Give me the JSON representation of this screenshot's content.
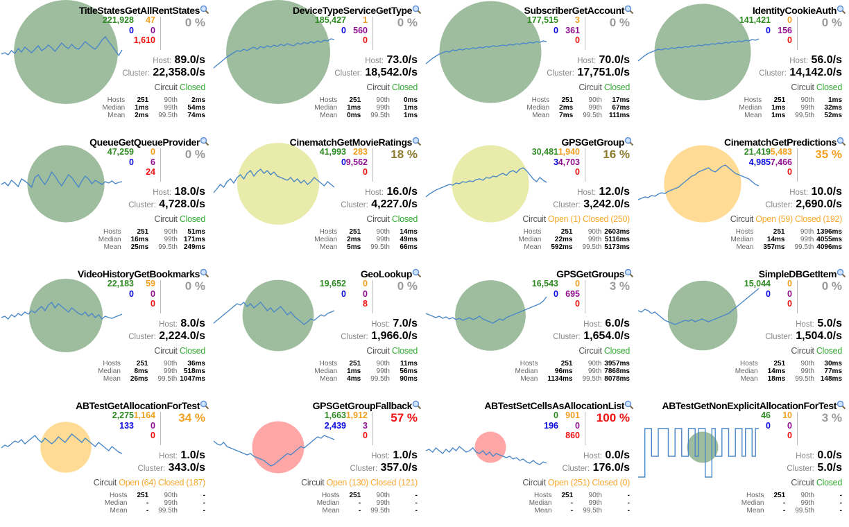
{
  "colors": {
    "ok_circle": "#7ea57e",
    "warn_circle": "#e1e48f",
    "amber_circle": "#ffcf72",
    "bad_circle": "#ff8888",
    "spark_line": "#4a87c7"
  },
  "labels": {
    "host": "Host:",
    "cluster": "Cluster:",
    "circuit": "Circuit"
  },
  "cards": [
    {
      "title": "TitleStatesGetAllRentStates",
      "success": "221,928",
      "short": "0",
      "timeout": "47",
      "rejected": "0",
      "failure": "1,610",
      "pct": "0 %",
      "pct_color": "#9a9a9a",
      "host_rate": "89.0/s",
      "cluster_rate": "22,358.0/s",
      "circuit_parts": [
        {
          "text": "Closed",
          "color": "#33aa33"
        }
      ],
      "circle": {
        "size": 1.0,
        "color": "#7ea57e"
      },
      "series": [
        50,
        52,
        49,
        55,
        51,
        58,
        53,
        60,
        56,
        52,
        57,
        62,
        55,
        58,
        63,
        59,
        54,
        60,
        66,
        61,
        58,
        64,
        59,
        57,
        62,
        68,
        64,
        60,
        57,
        63,
        70,
        75,
        68,
        62,
        55,
        48,
        56
      ],
      "stats": {
        "hosts": "251",
        "median": "1ms",
        "mean": "2ms",
        "p90": "2ms",
        "p99": "54ms",
        "p995": "74ms"
      }
    },
    {
      "title": "DeviceTypeServiceGetType",
      "success": "185,427",
      "short": "0",
      "timeout": "1",
      "rejected": "560",
      "failure": "0",
      "pct": "0 %",
      "pct_color": "#9a9a9a",
      "host_rate": "73.0/s",
      "cluster_rate": "18,542.0/s",
      "circuit_parts": [
        {
          "text": "Closed",
          "color": "#33aa33"
        }
      ],
      "circle": {
        "size": 1.0,
        "color": "#7ea57e"
      },
      "series": [
        30,
        34,
        38,
        42,
        46,
        49,
        52,
        55,
        54,
        57,
        55,
        58,
        60,
        57,
        61,
        59,
        62,
        60,
        63,
        61,
        64,
        62,
        65,
        63,
        62,
        66,
        64,
        67,
        65,
        68,
        66,
        69,
        67,
        70,
        69,
        72,
        71
      ],
      "stats": {
        "hosts": "251",
        "median": "1ms",
        "mean": "0ms",
        "p90": "0ms",
        "p99": "1ms",
        "p995": "1ms"
      }
    },
    {
      "title": "SubscriberGetAccount",
      "success": "177,515",
      "short": "0",
      "timeout": "3",
      "rejected": "361",
      "failure": "0",
      "pct": "0 %",
      "pct_color": "#9a9a9a",
      "host_rate": "70.0/s",
      "cluster_rate": "17,751.0/s",
      "circuit_parts": [
        {
          "text": "Closed",
          "color": "#33aa33"
        }
      ],
      "circle": {
        "size": 0.96,
        "color": "#7ea57e"
      },
      "series": [
        36,
        40,
        44,
        47,
        50,
        52,
        54,
        53,
        56,
        55,
        57,
        56,
        58,
        57,
        59,
        58,
        60,
        59,
        61,
        60,
        62,
        61,
        62,
        63,
        62,
        64,
        63,
        65,
        64,
        66,
        65,
        67,
        66,
        68,
        67,
        69,
        68
      ],
      "stats": {
        "hosts": "251",
        "median": "2ms",
        "mean": "7ms",
        "p90": "17ms",
        "p99": "67ms",
        "p995": "111ms"
      }
    },
    {
      "title": "IdentityCookieAuth",
      "success": "141,421",
      "short": "0",
      "timeout": "0",
      "rejected": "156",
      "failure": "0",
      "pct": "0 %",
      "pct_color": "#9a9a9a",
      "host_rate": "56.0/s",
      "cluster_rate": "14,142.0/s",
      "circuit_parts": [
        {
          "text": "Closed",
          "color": "#33aa33"
        }
      ],
      "circle": {
        "size": 0.86,
        "color": "#7ea57e"
      },
      "series": [
        40,
        44,
        48,
        51,
        53,
        55,
        57,
        56,
        58,
        57,
        59,
        58,
        60,
        59,
        61,
        60,
        62,
        61,
        63,
        62,
        64,
        63,
        65,
        64,
        66,
        65,
        67,
        66,
        68,
        67,
        69,
        68,
        70,
        69,
        71,
        70,
        72
      ],
      "stats": {
        "hosts": "251",
        "median": "1ms",
        "mean": "1ms",
        "p90": "1ms",
        "p99": "32ms",
        "p995": "52ms"
      }
    },
    {
      "title": "QueueGetQueueProvider",
      "success": "47,259",
      "short": "0",
      "timeout": "0",
      "rejected": "6",
      "failure": "24",
      "pct": "0 %",
      "pct_color": "#9a9a9a",
      "host_rate": "18.0/s",
      "cluster_rate": "4,728.0/s",
      "circuit_parts": [
        {
          "text": "Closed",
          "color": "#33aa33"
        }
      ],
      "circle": {
        "size": 0.55,
        "color": "#7ea57e"
      },
      "series": [
        52,
        55,
        50,
        58,
        54,
        49,
        60,
        57,
        53,
        48,
        62,
        66,
        58,
        52,
        60,
        70,
        64,
        56,
        50,
        58,
        66,
        62,
        55,
        48,
        57,
        64,
        60,
        53,
        58,
        55,
        52,
        56,
        54,
        57,
        53,
        55,
        56
      ],
      "stats": {
        "hosts": "251",
        "median": "16ms",
        "mean": "25ms",
        "p90": "51ms",
        "p99": "171ms",
        "p995": "249ms"
      }
    },
    {
      "title": "CinematchGetMovieRatings",
      "success": "41,993",
      "short": "0",
      "timeout": "283",
      "rejected": "9,562",
      "failure": "0",
      "pct": "18 %",
      "pct_color": "#8c7a2e",
      "host_rate": "16.0/s",
      "cluster_rate": "4,227.0/s",
      "circuit_parts": [
        {
          "text": "Closed",
          "color": "#33aa33"
        }
      ],
      "circle": {
        "size": 0.62,
        "color": "#e1e48f"
      },
      "series": [
        40,
        46,
        52,
        48,
        56,
        60,
        54,
        62,
        66,
        60,
        68,
        72,
        64,
        70,
        74,
        68,
        72,
        66,
        70,
        64,
        62,
        60,
        58,
        62,
        56,
        60,
        54,
        58,
        52,
        56,
        62,
        58,
        54,
        50,
        56,
        52,
        48
      ],
      "stats": {
        "hosts": "251",
        "median": "2ms",
        "mean": "5ms",
        "p90": "14ms",
        "p99": "49ms",
        "p995": "66ms"
      }
    },
    {
      "title": "GPSGetGroup",
      "success": "30,481",
      "short": "3",
      "timeout": "1,940",
      "rejected": "4,703",
      "failure": "0",
      "pct": "16 %",
      "pct_color": "#8c7a2e",
      "host_rate": "12.0/s",
      "cluster_rate": "3,242.0/s",
      "circuit_parts": [
        {
          "text": "Open (1)",
          "color": "#f7a830"
        },
        {
          "text": "Closed (250)",
          "color": "#f7a830"
        }
      ],
      "circle": {
        "size": 0.55,
        "color": "#e1e48f"
      },
      "series": [
        34,
        38,
        41,
        44,
        46,
        48,
        50,
        52,
        51,
        54,
        53,
        56,
        55,
        57,
        56,
        59,
        60,
        58,
        62,
        61,
        64,
        63,
        66,
        68,
        65,
        70,
        72,
        69,
        74,
        76,
        72,
        66,
        60,
        56,
        62,
        58,
        55
      ],
      "stats": {
        "hosts": "251",
        "median": "22ms",
        "mean": "592ms",
        "p90": "2603ms",
        "p99": "5116ms",
        "p995": "5173ms"
      }
    },
    {
      "title": "CinematchGetPredictions",
      "success": "21,419",
      "short": "4,985",
      "timeout": "5,483",
      "rejected": "7,466",
      "failure": "0",
      "pct": "35 %",
      "pct_color": "#f0a020",
      "host_rate": "10.0/s",
      "cluster_rate": "2,690.0/s",
      "circuit_parts": [
        {
          "text": "Open (59)",
          "color": "#f7a830"
        },
        {
          "text": "Closed (192)",
          "color": "#f7a830"
        }
      ],
      "circle": {
        "size": 0.55,
        "color": "#ffcf72"
      },
      "series": [
        30,
        32,
        34,
        33,
        36,
        35,
        38,
        40,
        39,
        42,
        44,
        46,
        48,
        52,
        56,
        60,
        64,
        66,
        70,
        72,
        74,
        76,
        72,
        70,
        74,
        78,
        80,
        76,
        72,
        68,
        66,
        64,
        62,
        60,
        56,
        52,
        50
      ],
      "stats": {
        "hosts": "251",
        "median": "14ms",
        "mean": "357ms",
        "p90": "1396ms",
        "p99": "4055ms",
        "p995": "4096ms"
      }
    },
    {
      "title": "VideoHistoryGetBookmarks",
      "success": "22,183",
      "short": "0",
      "timeout": "59",
      "rejected": "0",
      "failure": "0",
      "pct": "0 %",
      "pct_color": "#9a9a9a",
      "host_rate": "8.0/s",
      "cluster_rate": "2,224.0/s",
      "circuit_parts": [
        {
          "text": "Closed",
          "color": "#33aa33"
        }
      ],
      "circle": {
        "size": 0.5,
        "color": "#7ea57e"
      },
      "series": [
        50,
        52,
        48,
        54,
        51,
        56,
        53,
        58,
        55,
        60,
        57,
        62,
        66,
        60,
        68,
        72,
        64,
        70,
        66,
        62,
        58,
        64,
        60,
        56,
        54,
        58,
        52,
        56,
        50,
        54,
        48,
        52,
        50,
        49,
        51,
        53,
        55
      ],
      "stats": {
        "hosts": "251",
        "median": "8ms",
        "mean": "26ms",
        "p90": "36ms",
        "p99": "518ms",
        "p995": "1047ms"
      }
    },
    {
      "title": "GeoLookup",
      "success": "19,652",
      "short": "0",
      "timeout": "0",
      "rejected": "0",
      "failure": "8",
      "pct": "0 %",
      "pct_color": "#9a9a9a",
      "host_rate": "7.0/s",
      "cluster_rate": "1,966.0/s",
      "circuit_parts": [
        {
          "text": "Closed",
          "color": "#33aa33"
        }
      ],
      "circle": {
        "size": 0.47,
        "color": "#7ea57e"
      },
      "series": [
        42,
        46,
        50,
        54,
        58,
        62,
        66,
        70,
        68,
        72,
        66,
        70,
        64,
        68,
        72,
        66,
        60,
        64,
        58,
        62,
        66,
        60,
        54,
        58,
        52,
        48,
        44,
        40,
        44,
        48,
        46,
        50,
        54,
        52,
        56,
        58,
        60
      ],
      "stats": {
        "hosts": "251",
        "median": "1ms",
        "mean": "4ms",
        "p90": "11ms",
        "p99": "56ms",
        "p995": "90ms"
      }
    },
    {
      "title": "GPSGetGroups",
      "success": "16,543",
      "short": "0",
      "timeout": "0",
      "rejected": "695",
      "failure": "0",
      "pct": "3 %",
      "pct_color": "#9a9a9a",
      "host_rate": "6.0/s",
      "cluster_rate": "1,654.0/s",
      "circuit_parts": [
        {
          "text": "Closed",
          "color": "#33aa33"
        }
      ],
      "circle": {
        "size": 0.46,
        "color": "#7ea57e"
      },
      "series": [
        56,
        54,
        52,
        50,
        52,
        49,
        51,
        48,
        50,
        47,
        49,
        46,
        48,
        50,
        47,
        49,
        52,
        48,
        46,
        44,
        42,
        45,
        48,
        46,
        50,
        52,
        54,
        56,
        58,
        60,
        62,
        64,
        66,
        68,
        70,
        74,
        80
      ],
      "stats": {
        "hosts": "251",
        "median": "96ms",
        "mean": "1134ms",
        "p90": "3957ms",
        "p99": "7868ms",
        "p995": "8078ms"
      }
    },
    {
      "title": "SimpleDBGetItem",
      "success": "15,044",
      "short": "0",
      "timeout": "0",
      "rejected": "0",
      "failure": "0",
      "pct": "0 %",
      "pct_color": "#9a9a9a",
      "host_rate": "5.0/s",
      "cluster_rate": "1,504.0/s",
      "circuit_parts": [
        {
          "text": "Closed",
          "color": "#33aa33"
        }
      ],
      "circle": {
        "size": 0.45,
        "color": "#7ea57e"
      },
      "series": [
        60,
        58,
        62,
        60,
        56,
        58,
        54,
        50,
        46,
        44,
        42,
        40,
        42,
        44,
        46,
        45,
        47,
        44,
        46,
        48,
        46,
        44,
        46,
        48,
        50,
        52,
        54,
        56,
        60,
        64,
        68,
        72,
        76,
        80,
        84,
        88,
        92
      ],
      "stats": {
        "hosts": "251",
        "median": "14ms",
        "mean": "18ms",
        "p90": "30ms",
        "p99": "77ms",
        "p995": "148ms"
      }
    },
    {
      "title": "ABTestGetAllocationForTest",
      "success": "2,275",
      "short": "133",
      "timeout": "1,164",
      "rejected": "0",
      "failure": "0",
      "pct": "34 %",
      "pct_color": "#f0a020",
      "host_rate": "1.0/s",
      "cluster_rate": "343.0/s",
      "circuit_parts": [
        {
          "text": "Open (64)",
          "color": "#f7a830"
        },
        {
          "text": "Closed (187)",
          "color": "#f7a830"
        }
      ],
      "circle": {
        "size": 0.24,
        "color": "#ffcf72"
      },
      "series": [
        52,
        56,
        54,
        58,
        62,
        60,
        64,
        58,
        62,
        66,
        70,
        64,
        60,
        66,
        62,
        58,
        62,
        68,
        64,
        60,
        66,
        72,
        68,
        64,
        60,
        66,
        62,
        58,
        54,
        60,
        56,
        52,
        48,
        54,
        50,
        46,
        44
      ],
      "stats": {
        "hosts": "251",
        "median": "-",
        "mean": "-",
        "p90": "-",
        "p99": "-",
        "p995": "-"
      }
    },
    {
      "title": "GPSGetGroupFallback",
      "success": "1,663",
      "short": "2,439",
      "timeout": "1,912",
      "rejected": "3",
      "failure": "0",
      "pct": "57 %",
      "pct_color": "#f01010",
      "host_rate": "1.0/s",
      "cluster_rate": "357.0/s",
      "circuit_parts": [
        {
          "text": "Open (130)",
          "color": "#f7a830"
        },
        {
          "text": "Closed (121)",
          "color": "#f7a830"
        }
      ],
      "circle": {
        "size": 0.25,
        "color": "#ff8888"
      },
      "series": [
        62,
        58,
        56,
        60,
        54,
        52,
        50,
        48,
        46,
        44,
        42,
        44,
        40,
        38,
        36,
        34,
        30,
        26,
        28,
        32,
        36,
        40,
        44,
        42,
        46,
        50,
        54,
        52,
        56,
        60,
        64,
        68,
        66,
        70,
        68,
        66,
        64
      ],
      "stats": {
        "hosts": "251",
        "median": "-",
        "mean": "-",
        "p90": "-",
        "p99": "-",
        "p995": "-"
      }
    },
    {
      "title": "ABTestSetCellsAsAllocationList",
      "success": "0",
      "short": "196",
      "timeout": "901",
      "rejected": "0",
      "failure": "860",
      "pct": "100 %",
      "pct_color": "#f01010",
      "host_rate": "0.0/s",
      "cluster_rate": "176.0/s",
      "circuit_parts": [
        {
          "text": "Open (251)",
          "color": "#f7a830"
        },
        {
          "text": "Closed (0)",
          "color": "#f7a830"
        }
      ],
      "circle": {
        "size": 0.09,
        "color": "#ff8888"
      },
      "series": [
        48,
        50,
        46,
        52,
        48,
        44,
        50,
        46,
        52,
        48,
        54,
        50,
        46,
        48,
        52,
        46,
        44,
        48,
        42,
        46,
        40,
        44,
        42,
        40,
        38,
        40,
        36,
        38,
        34,
        36,
        32,
        30,
        34,
        30,
        28,
        32,
        30
      ],
      "stats": {
        "hosts": "251",
        "median": "-",
        "mean": "-",
        "p90": "-",
        "p99": "-",
        "p995": "-"
      }
    },
    {
      "title": "ABTestGetNonExplicitAllocationForTest",
      "success": "46",
      "short": "0",
      "timeout": "10",
      "rejected": "0",
      "failure": "0",
      "pct": "3 %",
      "pct_color": "#9a9a9a",
      "host_rate": "0.0/s",
      "cluster_rate": "5.0/s",
      "circuit_parts": [
        {
          "text": "Closed",
          "color": "#33aa33"
        }
      ],
      "circle": {
        "size": 0.09,
        "color": "#7ea57e"
      },
      "square": true,
      "series": [
        10,
        10,
        80,
        80,
        40,
        40,
        80,
        80,
        80,
        40,
        40,
        80,
        80,
        40,
        40,
        80,
        80,
        40,
        80,
        80,
        10,
        10,
        80,
        40,
        40,
        80,
        80,
        40,
        40,
        80,
        80,
        40,
        80,
        80,
        40,
        80,
        80
      ],
      "stats": {
        "hosts": "251",
        "median": "-",
        "mean": "-",
        "p90": "-",
        "p99": "-",
        "p995": "-"
      }
    }
  ]
}
